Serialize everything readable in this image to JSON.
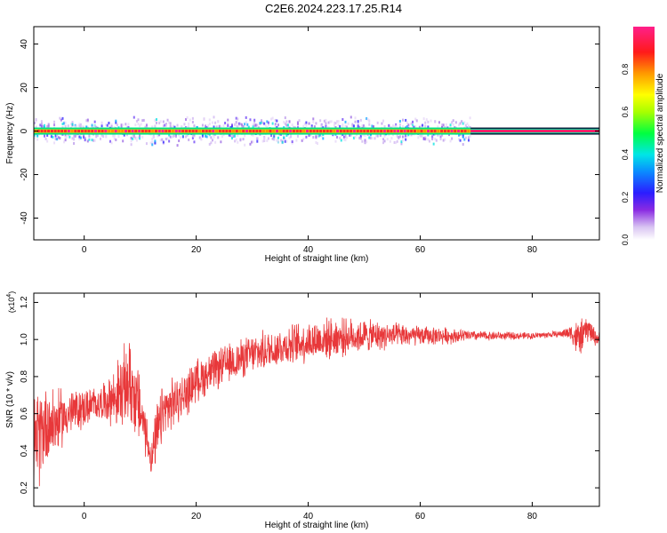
{
  "title": "C2E6.2024.223.17.25.R14",
  "chart_data": [
    {
      "type": "heatmap",
      "xlabel": "Height of straight line (km)",
      "ylabel": "Frequency (Hz)",
      "xlim": [
        -9,
        92
      ],
      "ylim": [
        -50,
        48
      ],
      "xticks": [
        "0",
        "20",
        "40",
        "60",
        "80"
      ],
      "yticks": [
        "40",
        "20",
        "0",
        "-20",
        "-40"
      ],
      "band_center_hz": 0,
      "band_halfwidth_hz_noisy": 5,
      "band_halfwidth_hz_clean": 1,
      "clean_from_km": 69,
      "colorbar": {
        "label": "Normalized spectral amplitude",
        "range": [
          0.0,
          1.0
        ],
        "ticks": [
          "0.0",
          "0.2",
          "0.4",
          "0.6",
          "0.8"
        ]
      }
    },
    {
      "type": "line",
      "xlabel": "Height of straight line (km)",
      "ylabel": "SNR (10 * v/v)",
      "y_multiplier": "(x10",
      "y_multiplier_exp": "4",
      "xlim": [
        -9,
        92
      ],
      "ylim": [
        0.1,
        1.25
      ],
      "xticks": [
        "0",
        "20",
        "40",
        "60",
        "80"
      ],
      "yticks": [
        "1.2",
        "1.0",
        "0.8",
        "0.6",
        "0.4",
        "0.2"
      ],
      "color": "#e8383a",
      "envelope": {
        "x": [
          -9,
          -7,
          -5,
          -3,
          0,
          3,
          5,
          6,
          7,
          8,
          9,
          10,
          11,
          12,
          13,
          14,
          16,
          18,
          20,
          25,
          30,
          35,
          40,
          45,
          50,
          55,
          60,
          65,
          70,
          75,
          80,
          85,
          87,
          88,
          89,
          90,
          91,
          92
        ],
        "mid": [
          0.4,
          0.55,
          0.55,
          0.6,
          0.63,
          0.66,
          0.68,
          0.7,
          0.72,
          0.78,
          0.7,
          0.62,
          0.5,
          0.35,
          0.48,
          0.6,
          0.66,
          0.7,
          0.78,
          0.86,
          0.92,
          0.96,
          0.99,
          1.01,
          1.02,
          1.02,
          1.02,
          1.02,
          1.02,
          1.02,
          1.02,
          1.03,
          1.04,
          1.0,
          1.02,
          1.06,
          1.02,
          1.0
        ],
        "amp": [
          0.3,
          0.28,
          0.2,
          0.15,
          0.12,
          0.1,
          0.16,
          0.22,
          0.25,
          0.28,
          0.25,
          0.22,
          0.15,
          0.1,
          0.2,
          0.18,
          0.15,
          0.14,
          0.13,
          0.12,
          0.12,
          0.12,
          0.13,
          0.12,
          0.1,
          0.08,
          0.06,
          0.05,
          0.03,
          0.025,
          0.02,
          0.02,
          0.05,
          0.12,
          0.1,
          0.08,
          0.06,
          0.04
        ]
      }
    }
  ]
}
